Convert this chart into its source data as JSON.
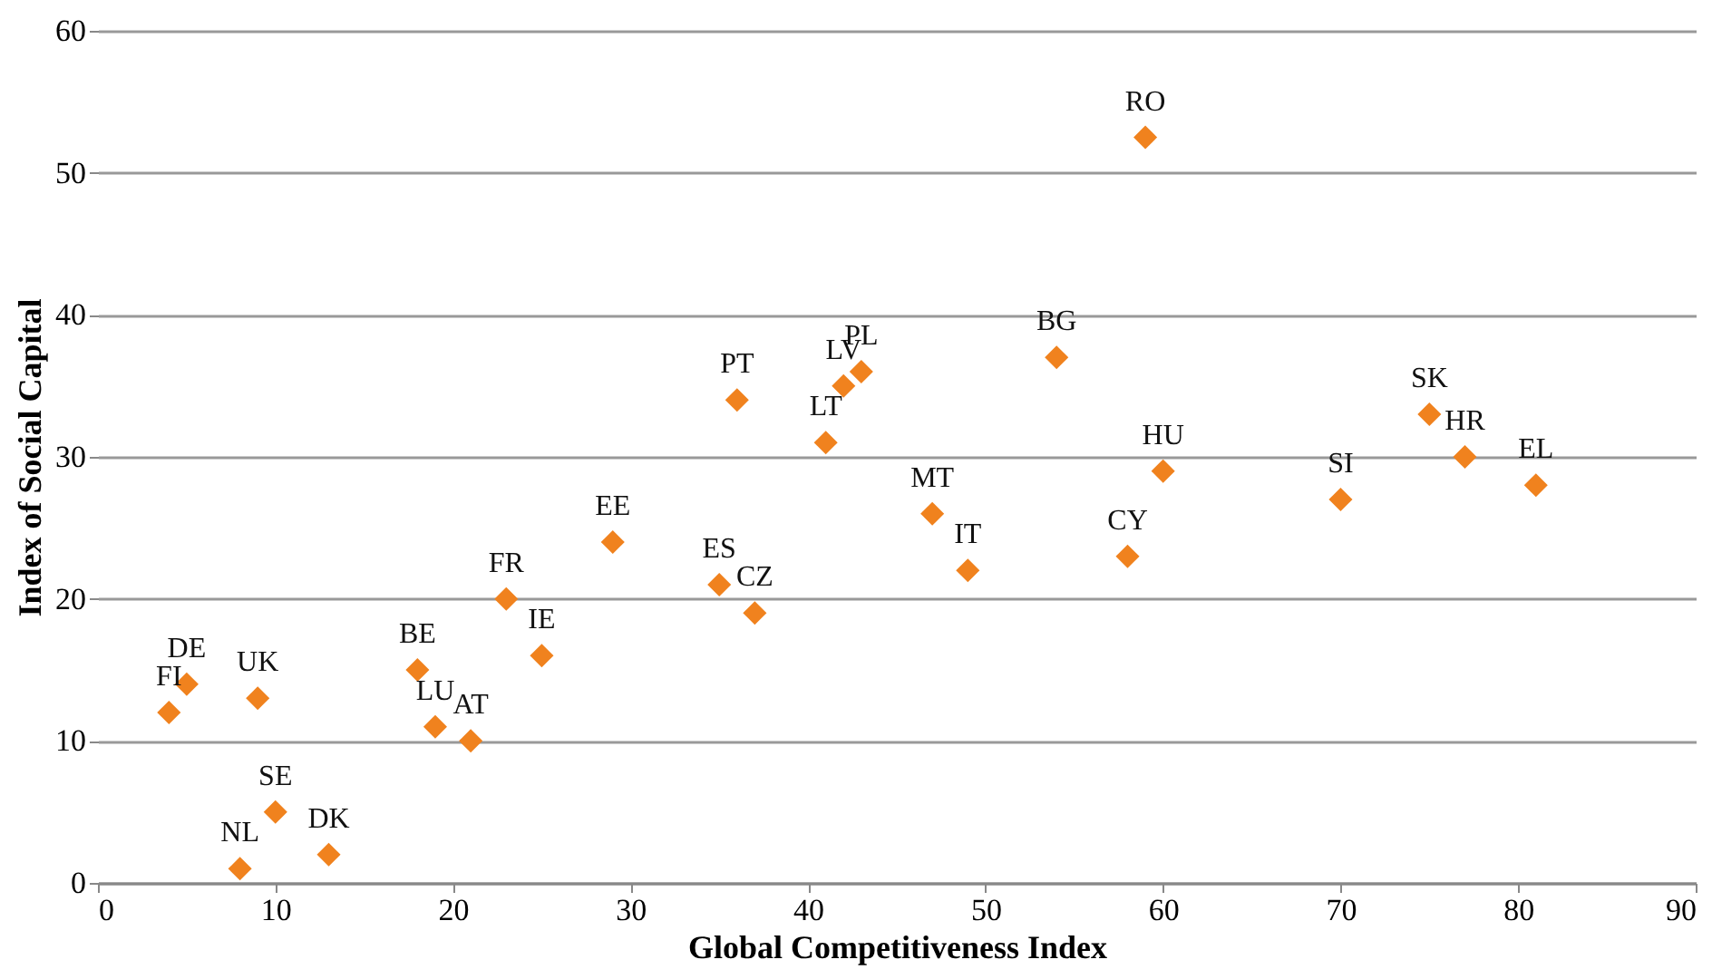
{
  "chart_data": {
    "type": "scatter",
    "xlabel": "Global Competitiveness Index",
    "ylabel": "Index of Social Capital",
    "x": [
      4,
      5,
      9,
      10,
      8,
      13,
      18,
      19,
      21,
      23,
      25,
      29,
      35,
      37,
      36,
      41,
      42,
      43,
      47,
      49,
      54,
      59,
      58,
      60,
      70,
      75,
      77,
      81
    ],
    "series": [
      {
        "color": "#f0821e",
        "values": [
          12,
          14,
          13,
          5,
          1,
          2,
          15,
          11,
          10,
          20,
          16,
          24,
          21,
          19,
          34,
          31,
          35,
          36,
          26,
          22,
          37,
          52.5,
          23,
          29,
          27,
          33,
          30,
          28
        ]
      }
    ],
    "annotations": [
      {
        "text": "FI",
        "x": 4,
        "y": 12
      },
      {
        "text": "DE",
        "x": 5,
        "y": 14
      },
      {
        "text": "UK",
        "x": 9,
        "y": 13
      },
      {
        "text": "SE",
        "x": 10,
        "y": 5
      },
      {
        "text": "NL",
        "x": 8,
        "y": 1
      },
      {
        "text": "DK",
        "x": 13,
        "y": 2
      },
      {
        "text": "BE",
        "x": 18,
        "y": 15
      },
      {
        "text": "LU",
        "x": 19,
        "y": 11
      },
      {
        "text": "AT",
        "x": 21,
        "y": 10
      },
      {
        "text": "FR",
        "x": 23,
        "y": 20
      },
      {
        "text": "IE",
        "x": 25,
        "y": 16
      },
      {
        "text": "EE",
        "x": 29,
        "y": 24
      },
      {
        "text": "ES",
        "x": 35,
        "y": 21
      },
      {
        "text": "CZ",
        "x": 37,
        "y": 19
      },
      {
        "text": "PT",
        "x": 36,
        "y": 34
      },
      {
        "text": "LT",
        "x": 41,
        "y": 31
      },
      {
        "text": "LV",
        "x": 42,
        "y": 35
      },
      {
        "text": "PL",
        "x": 43,
        "y": 36
      },
      {
        "text": "MT",
        "x": 47,
        "y": 26
      },
      {
        "text": "IT",
        "x": 49,
        "y": 22
      },
      {
        "text": "BG",
        "x": 54,
        "y": 37
      },
      {
        "text": "RO",
        "x": 59,
        "y": 52.5
      },
      {
        "text": "CY",
        "x": 58,
        "y": 23
      },
      {
        "text": "HU",
        "x": 60,
        "y": 29
      },
      {
        "text": "SI",
        "x": 70,
        "y": 27
      },
      {
        "text": "SK",
        "x": 75,
        "y": 33
      },
      {
        "text": "HR",
        "x": 77,
        "y": 30
      },
      {
        "text": "EL",
        "x": 81,
        "y": 28
      }
    ],
    "xlim": [
      0,
      90
    ],
    "xticks": [
      0,
      10,
      20,
      30,
      40,
      50,
      60,
      70,
      80,
      90
    ],
    "ylim": [
      0,
      60
    ],
    "yticks": [
      0,
      10,
      20,
      30,
      40,
      50,
      60
    ],
    "grid": "y",
    "marker": "diamond"
  }
}
